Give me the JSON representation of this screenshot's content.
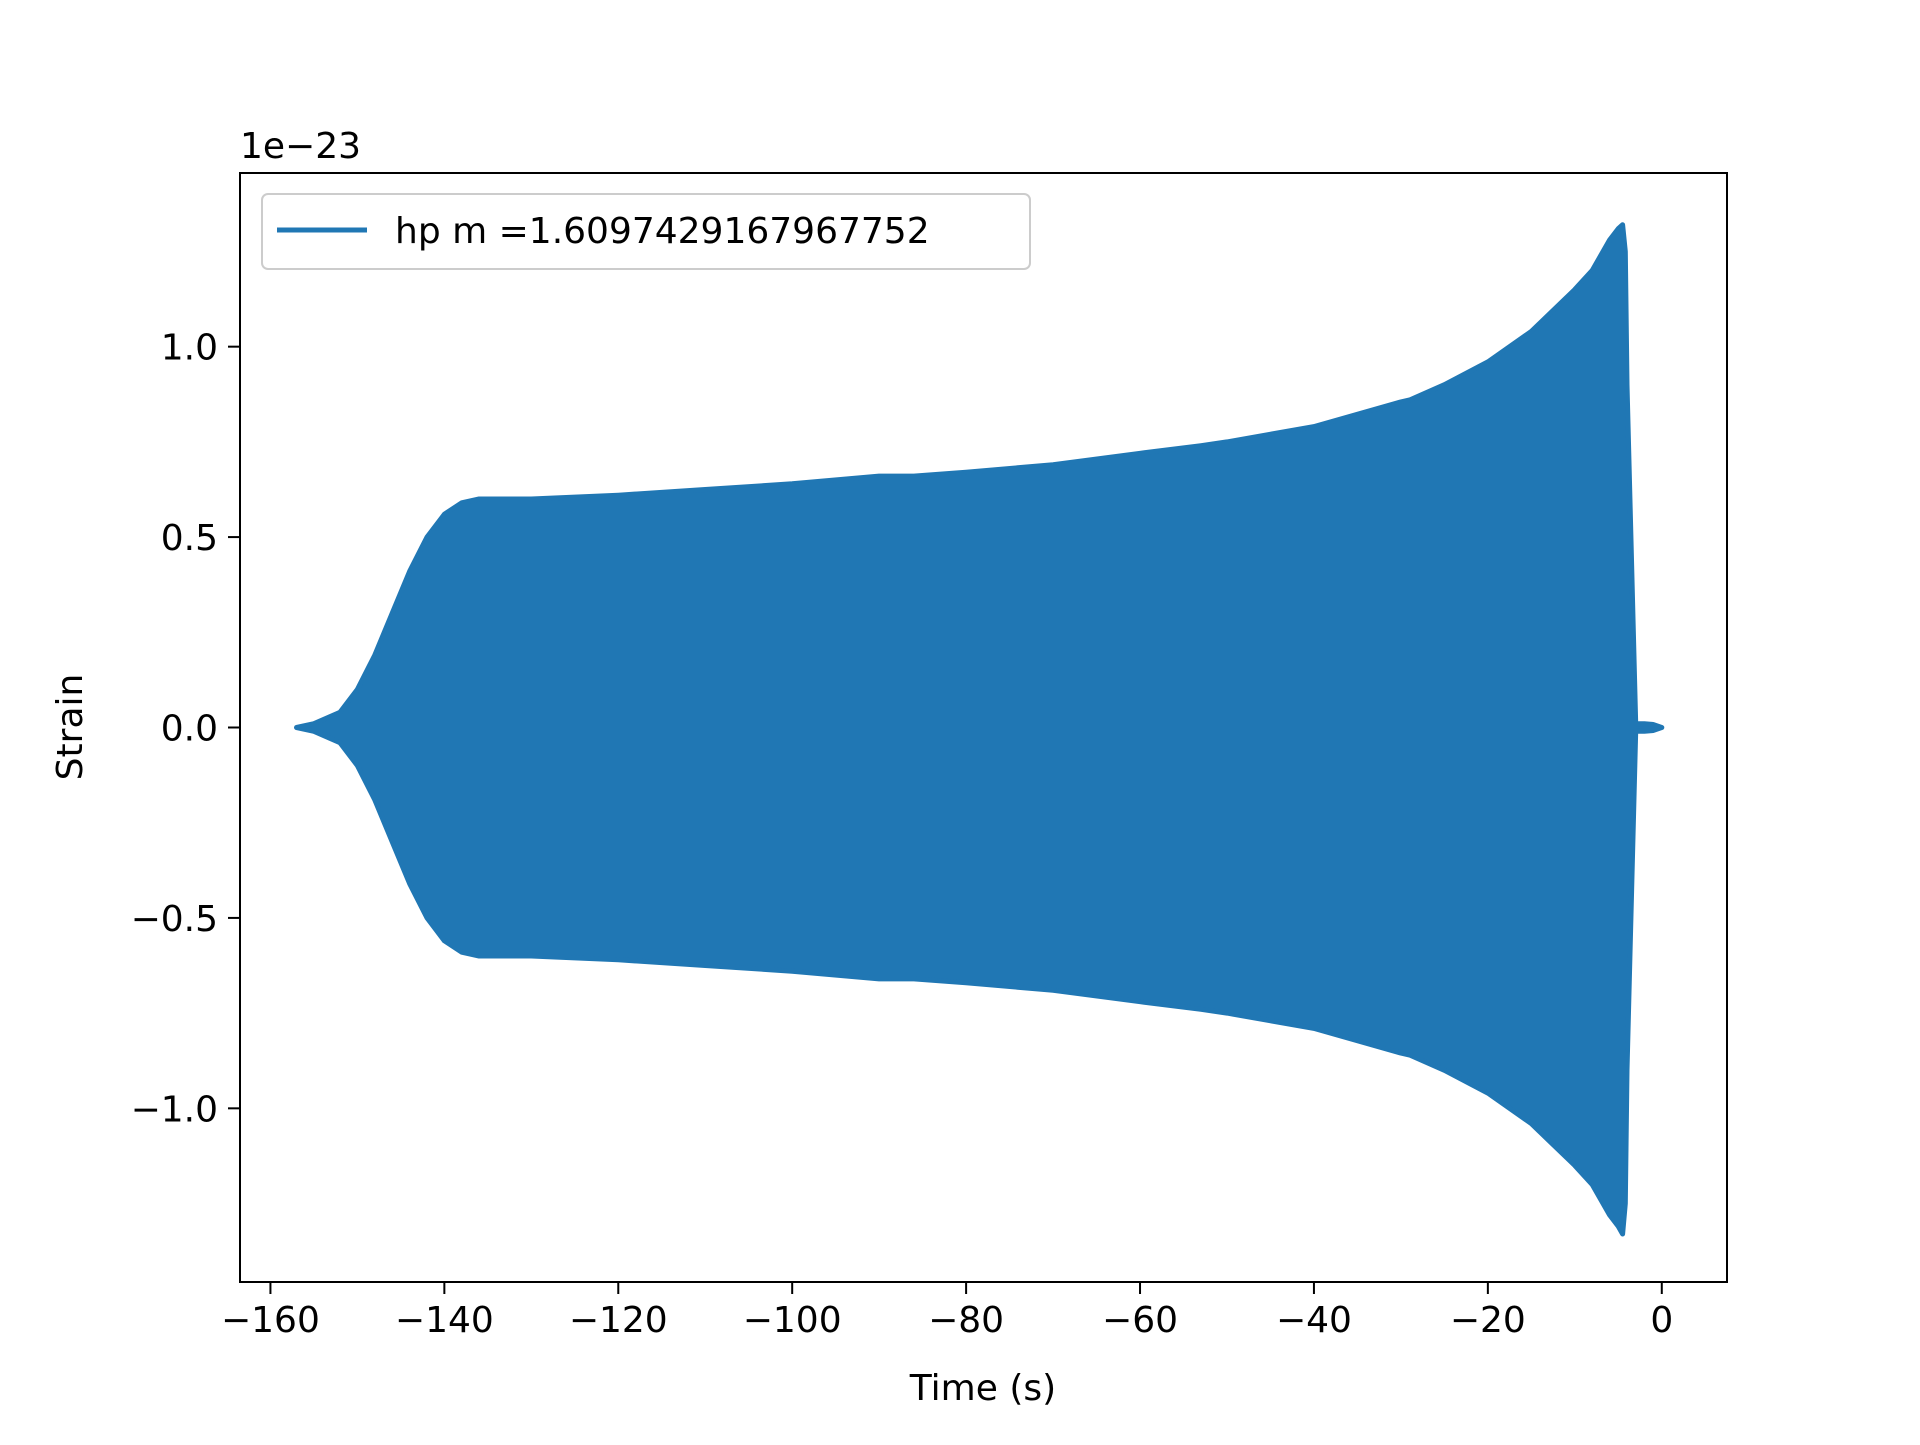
{
  "chart_data": {
    "type": "line",
    "title": "",
    "xlabel": "Time (s)",
    "ylabel": "Strain",
    "y_offset_label": "1e−23",
    "xlim": [
      -163.5,
      7.5
    ],
    "ylim": [
      -1.456,
      1.456
    ],
    "x_ticks": [
      {
        "value": -160,
        "label": "−160"
      },
      {
        "value": -140,
        "label": "−140"
      },
      {
        "value": -120,
        "label": "−120"
      },
      {
        "value": -100,
        "label": "−100"
      },
      {
        "value": -80,
        "label": "−80"
      },
      {
        "value": -60,
        "label": "−60"
      },
      {
        "value": -40,
        "label": "−40"
      },
      {
        "value": -20,
        "label": "−20"
      },
      {
        "value": 0,
        "label": "0"
      }
    ],
    "y_ticks": [
      {
        "value": 1.0,
        "label": "1.0"
      },
      {
        "value": 0.5,
        "label": "0.5"
      },
      {
        "value": 0.0,
        "label": "0.0"
      },
      {
        "value": -0.5,
        "label": "−0.5"
      },
      {
        "value": -1.0,
        "label": "−1.0"
      }
    ],
    "grid": false,
    "legend_position": "top-left",
    "series": [
      {
        "name": "hp m =1.6097429167967752",
        "color": "#2077b4",
        "envelope": {
          "time": [
            -157,
            -155,
            -152,
            -150,
            -148,
            -146,
            -144,
            -142,
            -140,
            -138,
            -136,
            -134,
            -130,
            -125,
            -120,
            -110,
            -100,
            -90,
            -86,
            -80,
            -70,
            -60,
            -53,
            -50,
            -40,
            -30,
            -29,
            -25,
            -20,
            -15,
            -10,
            -8,
            -6,
            -5,
            -4.5,
            -4.2,
            -4,
            -3,
            -2,
            -1,
            0
          ],
          "upper": [
            0.0,
            0.01,
            0.04,
            0.1,
            0.19,
            0.3,
            0.41,
            0.5,
            0.56,
            0.59,
            0.6,
            0.6,
            0.6,
            0.605,
            0.61,
            0.625,
            0.64,
            0.66,
            0.66,
            0.67,
            0.69,
            0.72,
            0.74,
            0.75,
            0.79,
            0.855,
            0.86,
            0.9,
            0.96,
            1.04,
            1.15,
            1.2,
            1.28,
            1.31,
            1.32,
            1.25,
            0.9,
            0.01,
            0.01,
            0.008,
            0.0
          ],
          "lower": [
            0.0,
            -0.01,
            -0.04,
            -0.1,
            -0.19,
            -0.3,
            -0.41,
            -0.5,
            -0.56,
            -0.59,
            -0.6,
            -0.6,
            -0.6,
            -0.605,
            -0.61,
            -0.625,
            -0.64,
            -0.66,
            -0.66,
            -0.67,
            -0.69,
            -0.72,
            -0.74,
            -0.75,
            -0.79,
            -0.855,
            -0.86,
            -0.9,
            -0.96,
            -1.04,
            -1.15,
            -1.2,
            -1.28,
            -1.31,
            -1.33,
            -1.25,
            -0.9,
            -0.01,
            -0.01,
            -0.008,
            0.0
          ]
        }
      }
    ]
  }
}
